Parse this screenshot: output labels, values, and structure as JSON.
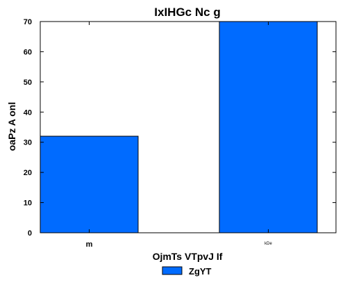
{
  "chart_data": {
    "type": "bar",
    "title": "IxIHGc  Nc g",
    "xlabel": "OjmTs VTpvJ If",
    "ylabel": "oaPz A onl",
    "categories": [
      "m",
      "kDe"
    ],
    "series": [
      {
        "name": "ZgYT",
        "values": [
          32,
          70
        ],
        "color": "#006bff"
      }
    ],
    "ylim": [
      0,
      70
    ],
    "yticks": [
      0,
      10,
      20,
      30,
      40,
      50,
      60,
      70
    ],
    "grid": false,
    "legend_position": "bottom-center"
  }
}
